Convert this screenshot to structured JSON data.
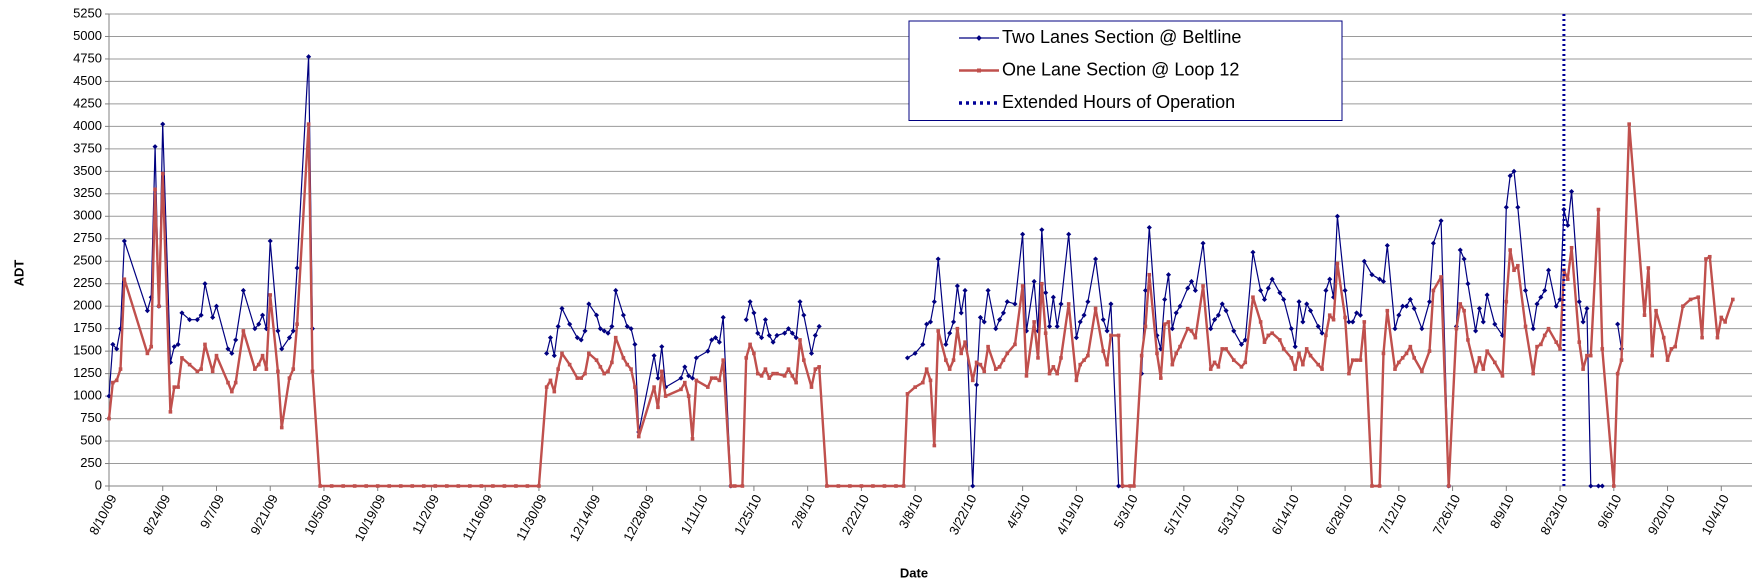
{
  "chart_data": {
    "type": "line",
    "x_label": "Date",
    "y_label": "ADT",
    "xlim": [
      "8/10/09",
      "10/12/10"
    ],
    "xticks": [
      "8/10/09",
      "8/24/09",
      "9/7/09",
      "9/21/09",
      "10/5/09",
      "10/19/09",
      "11/2/09",
      "11/16/09",
      "11/30/09",
      "12/14/09",
      "12/28/09",
      "1/11/10",
      "1/25/10",
      "2/8/10",
      "2/22/10",
      "3/8/10",
      "3/22/10",
      "4/5/10",
      "4/19/10",
      "5/3/10",
      "5/17/10",
      "5/31/10",
      "6/14/10",
      "6/28/10",
      "7/12/10",
      "7/26/10",
      "8/9/10",
      "8/23/10",
      "9/6/10",
      "9/20/10",
      "10/4/10"
    ],
    "ylim": [
      0,
      5250
    ],
    "yticks": [
      0,
      250,
      500,
      750,
      1000,
      1250,
      1500,
      1750,
      2000,
      2250,
      2500,
      2750,
      3000,
      3250,
      3500,
      3750,
      4000,
      4250,
      4500,
      4750,
      5000,
      5250
    ],
    "grid": true,
    "legend": "upper center",
    "x": [
      "8/10/09",
      "8/11/09",
      "8/12/09",
      "8/13/09",
      "8/14/09",
      "8/20/09",
      "8/21/09",
      "8/22/09",
      "8/23/09",
      "8/24/09",
      "8/26/09",
      "8/27/09",
      "8/28/09",
      "8/29/09",
      "8/31/09",
      "9/2/09",
      "9/3/09",
      "9/4/09",
      "9/6/09",
      "9/7/09",
      "9/10/09",
      "9/11/09",
      "9/12/09",
      "9/14/09",
      "9/17/09",
      "9/18/09",
      "9/19/09",
      "9/20/09",
      "9/21/09",
      "9/23/09",
      "9/24/09",
      "9/26/09",
      "9/27/09",
      "9/28/09",
      "10/1/09",
      "10/2/09",
      "10/4/09",
      "10/7/09",
      "10/10/09",
      "10/13/09",
      "10/16/09",
      "10/19/09",
      "10/22/09",
      "10/25/09",
      "10/28/09",
      "10/31/09",
      "11/3/09",
      "11/6/09",
      "11/9/09",
      "11/12/09",
      "11/15/09",
      "11/18/09",
      "11/21/09",
      "11/24/09",
      "11/27/09",
      "11/30/09",
      "12/2/09",
      "12/3/09",
      "12/4/09",
      "12/5/09",
      "12/6/09",
      "12/8/09",
      "12/10/09",
      "12/11/09",
      "12/12/09",
      "12/13/09",
      "12/15/09",
      "12/16/09",
      "12/17/09",
      "12/18/09",
      "12/19/09",
      "12/20/09",
      "12/22/09",
      "12/23/09",
      "12/24/09",
      "12/25/09",
      "12/26/09",
      "12/30/09",
      "12/31/09",
      "1/1/10",
      "1/2/10",
      "1/6/10",
      "1/7/10",
      "1/8/10",
      "1/9/10",
      "1/10/10",
      "1/13/10",
      "1/14/10",
      "1/15/10",
      "1/16/10",
      "1/17/10",
      "1/19/10",
      "1/20/10",
      "1/22/10",
      "1/23/10",
      "1/24/10",
      "1/25/10",
      "1/26/10",
      "1/27/10",
      "1/28/10",
      "1/29/10",
      "1/30/10",
      "1/31/10",
      "2/2/10",
      "2/3/10",
      "2/4/10",
      "2/5/10",
      "2/6/10",
      "2/7/10",
      "2/9/10",
      "2/10/10",
      "2/11/10",
      "2/13/10",
      "2/16/10",
      "2/19/10",
      "2/22/10",
      "2/25/10",
      "2/28/10",
      "3/3/10",
      "3/5/10",
      "3/6/10",
      "3/8/10",
      "3/10/10",
      "3/11/10",
      "3/12/10",
      "3/13/10",
      "3/14/10",
      "3/16/10",
      "3/17/10",
      "3/18/10",
      "3/19/10",
      "3/20/10",
      "3/21/10",
      "3/23/10",
      "3/24/10",
      "3/25/10",
      "3/26/10",
      "3/27/10",
      "3/29/10",
      "3/30/10",
      "3/31/10",
      "4/1/10",
      "4/3/10",
      "4/5/10",
      "4/6/10",
      "4/8/10",
      "4/9/10",
      "4/10/10",
      "4/11/10",
      "4/12/10",
      "4/13/10",
      "4/14/10",
      "4/15/10",
      "4/17/10",
      "4/19/10",
      "4/20/10",
      "4/21/10",
      "4/22/10",
      "4/24/10",
      "4/26/10",
      "4/27/10",
      "4/28/10",
      "4/30/10",
      "5/1/10",
      "5/3/10",
      "5/4/10",
      "5/6/10",
      "5/7/10",
      "5/8/10",
      "5/10/10",
      "5/11/10",
      "5/12/10",
      "5/13/10",
      "5/14/10",
      "5/15/10",
      "5/16/10",
      "5/18/10",
      "5/19/10",
      "5/20/10",
      "5/22/10",
      "5/24/10",
      "5/25/10",
      "5/26/10",
      "5/27/10",
      "5/28/10",
      "5/30/10",
      "6/1/10",
      "6/2/10",
      "6/4/10",
      "6/6/10",
      "6/7/10",
      "6/8/10",
      "6/9/10",
      "6/11/10",
      "6/12/10",
      "6/14/10",
      "6/15/10",
      "6/16/10",
      "6/17/10",
      "6/18/10",
      "6/19/10",
      "6/21/10",
      "6/22/10",
      "6/23/10",
      "6/24/10",
      "6/25/10",
      "6/26/10",
      "6/28/10",
      "6/29/10",
      "6/30/10",
      "7/1/10",
      "7/2/10",
      "7/3/10",
      "7/5/10",
      "7/7/10",
      "7/8/10",
      "7/9/10",
      "7/11/10",
      "7/12/10",
      "7/13/10",
      "7/14/10",
      "7/15/10",
      "7/16/10",
      "7/18/10",
      "7/20/10",
      "7/21/10",
      "7/23/10",
      "7/25/10",
      "7/27/10",
      "7/28/10",
      "7/29/10",
      "7/30/10",
      "8/1/10",
      "8/2/10",
      "8/3/10",
      "8/4/10",
      "8/6/10",
      "8/8/10",
      "8/9/10",
      "8/10/10",
      "8/11/10",
      "8/12/10",
      "8/14/10",
      "8/16/10",
      "8/17/10",
      "8/18/10",
      "8/19/10",
      "8/20/10",
      "8/22/10",
      "8/23/10",
      "8/24/10",
      "8/25/10",
      "8/26/10",
      "8/28/10",
      "8/29/10",
      "8/30/10",
      "8/31/10",
      "9/2/10",
      "9/3/10",
      "9/6/10",
      "9/7/10",
      "9/8/10",
      "9/10/10",
      "9/14/10",
      "9/15/10",
      "9/16/10",
      "9/17/10",
      "9/19/10",
      "9/20/10",
      "9/21/10",
      "9/22/10",
      "9/24/10",
      "9/26/10",
      "9/28/10",
      "9/29/10",
      "9/30/10",
      "10/1/10",
      "10/3/10",
      "10/4/10",
      "10/5/10",
      "10/7/10"
    ],
    "series": [
      {
        "name": "Two Lanes Section @ Beltline",
        "color": "#000080",
        "marker": "diamond",
        "values": [
          1000,
          1575,
          1525,
          1750,
          2725,
          1950,
          2100,
          3775,
          2000,
          4025,
          1375,
          1550,
          1575,
          1925,
          1850,
          1850,
          1900,
          2250,
          1875,
          2000,
          1525,
          1475,
          1625,
          2175,
          1750,
          1800,
          1900,
          1750,
          2725,
          1725,
          1525,
          1650,
          1725,
          2425,
          4775,
          1750,
          null,
          null,
          null,
          null,
          null,
          null,
          null,
          null,
          null,
          null,
          null,
          null,
          null,
          null,
          null,
          null,
          null,
          null,
          null,
          null,
          1475,
          1650,
          1450,
          1775,
          1975,
          1800,
          1650,
          1625,
          1725,
          2025,
          1900,
          1750,
          1725,
          1700,
          1775,
          2175,
          1900,
          1775,
          1750,
          1575,
          600,
          1450,
          1200,
          1550,
          1100,
          1200,
          1325,
          1225,
          1200,
          1425,
          1500,
          1625,
          1650,
          1600,
          1875,
          0,
          null,
          null,
          1850,
          2050,
          1925,
          1700,
          1650,
          1850,
          1675,
          1600,
          1675,
          1700,
          1750,
          1700,
          1650,
          2050,
          1900,
          1475,
          1675,
          1775,
          null,
          null,
          null,
          null,
          null,
          null,
          null,
          null,
          1425,
          1475,
          1575,
          1800,
          1825,
          2050,
          2525,
          1575,
          1700,
          1825,
          2225,
          1925,
          2175,
          0,
          1125,
          1875,
          1825,
          2175,
          1750,
          1850,
          1925,
          2050,
          2025,
          2800,
          1725,
          2275,
          1725,
          2850,
          2150,
          1775,
          2100,
          1775,
          2025,
          2800,
          1650,
          1825,
          1900,
          2050,
          2525,
          1850,
          1725,
          2025,
          0,
          0,
          null,
          null,
          1250,
          2175,
          2875,
          1675,
          1525,
          2075,
          2350,
          1750,
          1925,
          2000,
          2200,
          2275,
          2175,
          2700,
          1750,
          1850,
          1900,
          2025,
          1950,
          1725,
          1575,
          1625,
          2600,
          2175,
          2075,
          2200,
          2300,
          2150,
          2075,
          1750,
          1550,
          2050,
          1825,
          2025,
          1950,
          1775,
          1700,
          2175,
          2300,
          2100,
          3000,
          2175,
          1825,
          1825,
          1925,
          1900,
          2500,
          2350,
          2300,
          2275,
          2675,
          1750,
          1900,
          2000,
          2000,
          2075,
          1975,
          1750,
          2050,
          2700,
          2950,
          0,
          1775,
          2625,
          2525,
          2250,
          1725,
          1975,
          1825,
          2125,
          1800,
          1675,
          3100,
          3450,
          3500,
          3100,
          2175,
          1750,
          2025,
          2100,
          2175,
          2400,
          2000,
          2075,
          3075,
          2900,
          3275,
          2050,
          1825,
          1975,
          0,
          0,
          0,
          null,
          1800,
          1525,
          null,
          null,
          null,
          null,
          null,
          null,
          null,
          null,
          null,
          null,
          null,
          null,
          null,
          null,
          null,
          null,
          null,
          null,
          null
        ]
      },
      {
        "name": "One Lane Section @ Loop 12",
        "color": "#c0504d",
        "marker": "square",
        "values": [
          750,
          1150,
          1175,
          1300,
          2300,
          1475,
          1550,
          3300,
          2000,
          3475,
          825,
          1100,
          1100,
          1425,
          1350,
          1275,
          1300,
          1575,
          1275,
          1450,
          1150,
          1050,
          1150,
          1725,
          1300,
          1350,
          1450,
          1300,
          2125,
          1275,
          650,
          1200,
          1300,
          1800,
          4025,
          1275,
          0,
          0,
          0,
          0,
          0,
          0,
          0,
          0,
          0,
          0,
          0,
          0,
          0,
          0,
          0,
          0,
          0,
          0,
          0,
          0,
          1100,
          1175,
          1050,
          1300,
          1475,
          1350,
          1200,
          1200,
          1250,
          1475,
          1400,
          1325,
          1250,
          1275,
          1375,
          1650,
          1425,
          1350,
          1300,
          1100,
          550,
          1100,
          875,
          1275,
          1000,
          1075,
          1150,
          1000,
          525,
          1175,
          1100,
          1200,
          1200,
          1175,
          1400,
          0,
          0,
          0,
          1425,
          1575,
          1475,
          1250,
          1225,
          1300,
          1200,
          1250,
          1250,
          1225,
          1300,
          1225,
          1150,
          1625,
          1400,
          1100,
          1300,
          1325,
          0,
          0,
          0,
          0,
          0,
          0,
          0,
          0,
          1025,
          1100,
          1150,
          1300,
          1175,
          450,
          1725,
          1400,
          1300,
          1400,
          1750,
          1475,
          1600,
          1175,
          1375,
          1350,
          1275,
          1550,
          1300,
          1325,
          1400,
          1475,
          1575,
          2225,
          1225,
          1825,
          1425,
          2250,
          1700,
          1250,
          1325,
          1250,
          1425,
          2025,
          1175,
          1350,
          1400,
          1450,
          1975,
          1500,
          1350,
          1675,
          1675,
          0,
          0,
          0,
          1450,
          1775,
          2350,
          1475,
          1200,
          1800,
          1825,
          1350,
          1475,
          1550,
          1750,
          1725,
          1650,
          2225,
          1300,
          1375,
          1325,
          1525,
          1525,
          1400,
          1325,
          1375,
          2100,
          1825,
          1600,
          1675,
          1700,
          1625,
          1525,
          1425,
          1300,
          1475,
          1350,
          1525,
          1450,
          1350,
          1300,
          1675,
          1900,
          1850,
          2475,
          1875,
          1250,
          1400,
          1400,
          1400,
          1825,
          0,
          0,
          1475,
          1950,
          1300,
          1375,
          1425,
          1475,
          1550,
          1425,
          1275,
          1500,
          2175,
          2325,
          0,
          1750,
          2025,
          1950,
          1625,
          1275,
          1425,
          1300,
          1500,
          1375,
          1225,
          2050,
          2625,
          2400,
          2450,
          1775,
          1250,
          1550,
          1575,
          1675,
          1750,
          1600,
          1525,
          2400,
          2300,
          2650,
          1600,
          1300,
          1450,
          1450,
          3075,
          1525,
          0,
          1250,
          1400,
          4025,
          1900,
          2425,
          1450,
          1950,
          1650,
          1400,
          1525,
          1550,
          2000,
          2075,
          2100,
          1650,
          2525,
          2550,
          1650,
          1875,
          1825,
          2075
        ]
      }
    ],
    "vlines": [
      {
        "name": "Extended Hours of Operation",
        "color": "#000099",
        "x": "8/24/10"
      }
    ]
  }
}
